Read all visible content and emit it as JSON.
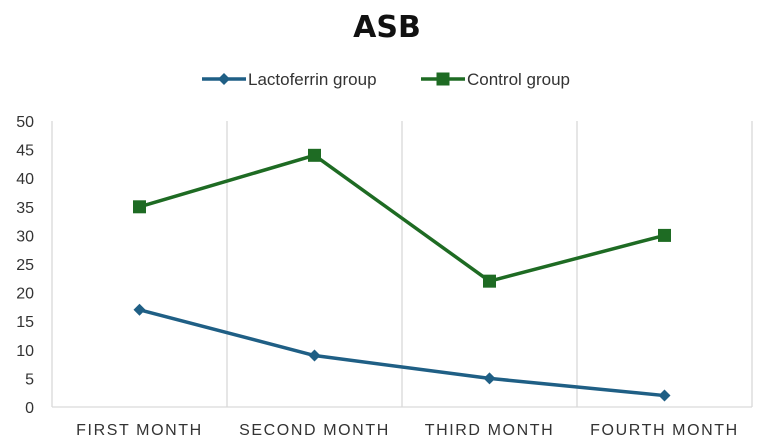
{
  "chart_data": {
    "type": "line",
    "title": "ASB",
    "xlabel": "",
    "ylabel": "",
    "categories": [
      "FIRST MONTH",
      "SECOND MONTH",
      "THIRD MONTH",
      "FOURTH MONTH"
    ],
    "ylim": [
      0,
      50
    ],
    "yticks": [
      0,
      5,
      10,
      15,
      20,
      25,
      30,
      35,
      40,
      45,
      50
    ],
    "grid": "vertical",
    "legend": "top-center",
    "series": [
      {
        "name": "Lactoferrin group",
        "values": [
          17,
          9,
          5,
          2
        ],
        "color": "#1f5f85",
        "marker": "diamond"
      },
      {
        "name": "Control group",
        "values": [
          35,
          44,
          22,
          30
        ],
        "color": "#1e6b23",
        "marker": "square"
      }
    ]
  }
}
